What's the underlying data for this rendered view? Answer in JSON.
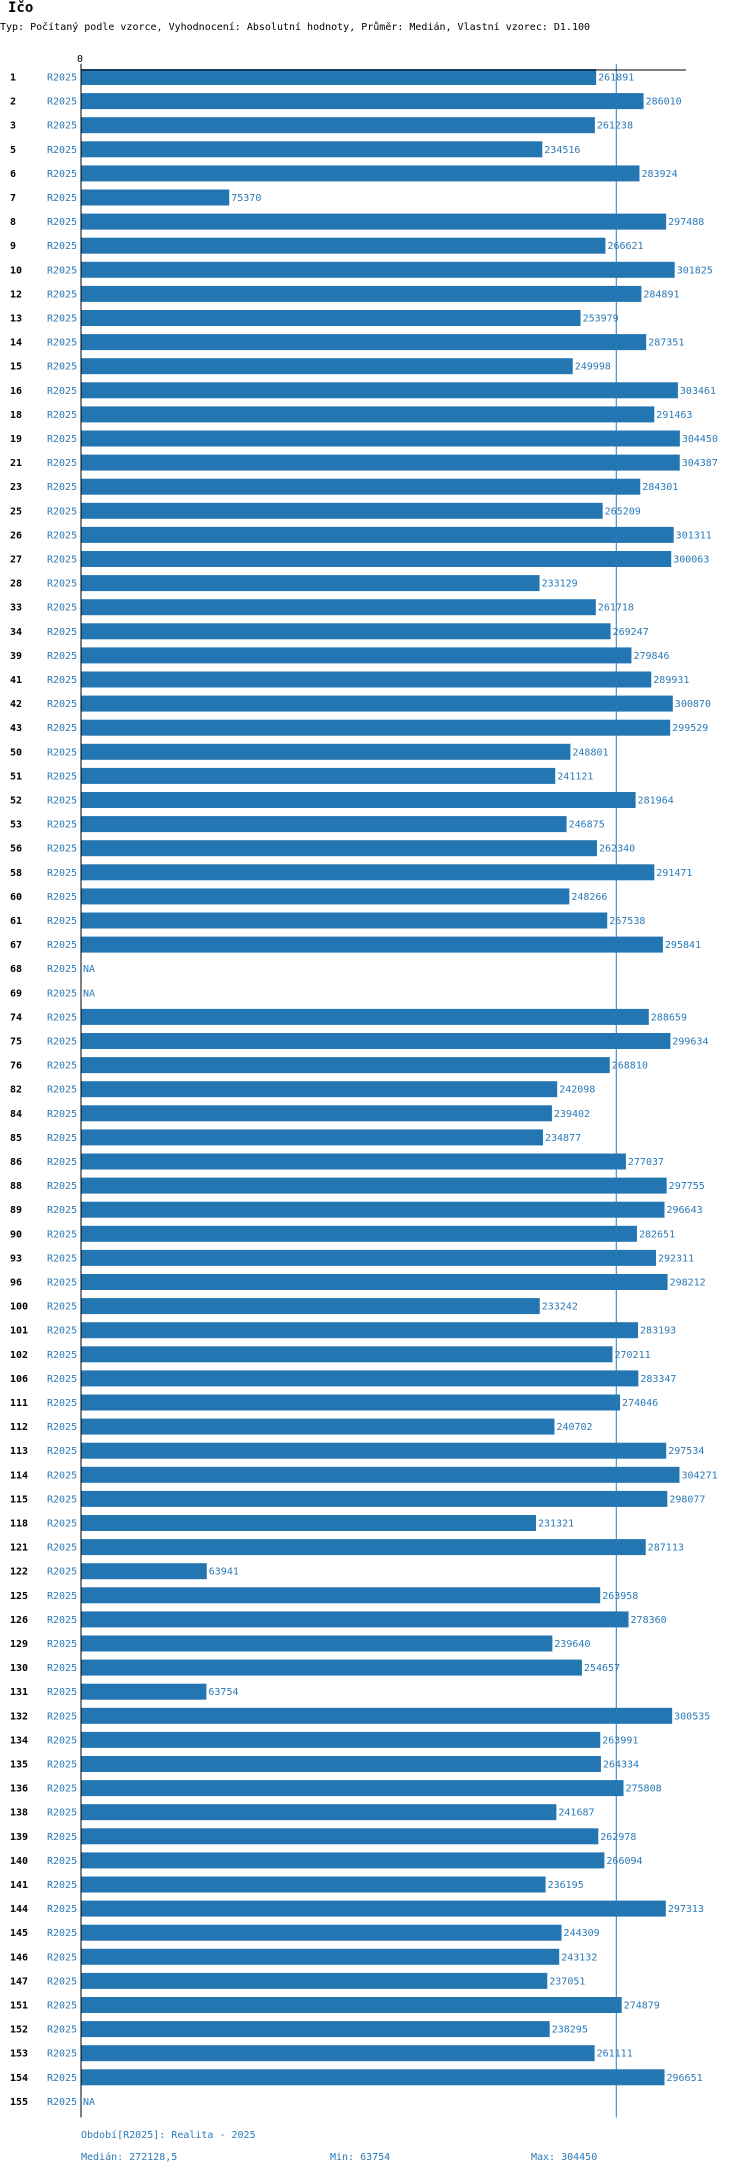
{
  "title": "Ičo",
  "subtitle": "Typ: Počítaný podle vzorce, Vyhodnocení: Absolutní hodnoty, Průměr: Medián, Vlastní vzorec: D1.100",
  "colors": {
    "bar": "#2476b2",
    "text_accent": "#2a7ab8",
    "median_line": "#2a7ab8",
    "axis": "#000000"
  },
  "chart_data": {
    "type": "bar",
    "orientation": "horizontal",
    "title": "Ičo",
    "period_label": "R2025",
    "x_tick_label": "0",
    "xlim": [
      0,
      320000
    ],
    "median": 272128.5,
    "na_label": "NA",
    "rows": [
      {
        "id": "1",
        "value": 261891
      },
      {
        "id": "2",
        "value": 286010
      },
      {
        "id": "3",
        "value": 261238
      },
      {
        "id": "5",
        "value": 234516
      },
      {
        "id": "6",
        "value": 283924
      },
      {
        "id": "7",
        "value": 75370
      },
      {
        "id": "8",
        "value": 297488
      },
      {
        "id": "9",
        "value": 266621
      },
      {
        "id": "10",
        "value": 301825
      },
      {
        "id": "12",
        "value": 284891
      },
      {
        "id": "13",
        "value": 253979
      },
      {
        "id": "14",
        "value": 287351
      },
      {
        "id": "15",
        "value": 249998
      },
      {
        "id": "16",
        "value": 303461
      },
      {
        "id": "18",
        "value": 291463
      },
      {
        "id": "19",
        "value": 304450
      },
      {
        "id": "21",
        "value": 304387
      },
      {
        "id": "23",
        "value": 284301
      },
      {
        "id": "25",
        "value": 265209
      },
      {
        "id": "26",
        "value": 301311
      },
      {
        "id": "27",
        "value": 300063
      },
      {
        "id": "28",
        "value": 233129
      },
      {
        "id": "33",
        "value": 261718
      },
      {
        "id": "34",
        "value": 269247
      },
      {
        "id": "39",
        "value": 279846
      },
      {
        "id": "41",
        "value": 289931
      },
      {
        "id": "42",
        "value": 300870
      },
      {
        "id": "43",
        "value": 299529
      },
      {
        "id": "50",
        "value": 248801
      },
      {
        "id": "51",
        "value": 241121
      },
      {
        "id": "52",
        "value": 281964
      },
      {
        "id": "53",
        "value": 246875
      },
      {
        "id": "56",
        "value": 262340
      },
      {
        "id": "58",
        "value": 291471
      },
      {
        "id": "60",
        "value": 248266
      },
      {
        "id": "61",
        "value": 267538
      },
      {
        "id": "67",
        "value": 295841
      },
      {
        "id": "68",
        "value": null
      },
      {
        "id": "69",
        "value": null
      },
      {
        "id": "74",
        "value": 288659
      },
      {
        "id": "75",
        "value": 299634
      },
      {
        "id": "76",
        "value": 268810
      },
      {
        "id": "82",
        "value": 242098
      },
      {
        "id": "84",
        "value": 239402
      },
      {
        "id": "85",
        "value": 234877
      },
      {
        "id": "86",
        "value": 277037
      },
      {
        "id": "88",
        "value": 297755
      },
      {
        "id": "89",
        "value": 296643
      },
      {
        "id": "90",
        "value": 282651
      },
      {
        "id": "93",
        "value": 292311
      },
      {
        "id": "96",
        "value": 298212
      },
      {
        "id": "100",
        "value": 233242
      },
      {
        "id": "101",
        "value": 283193
      },
      {
        "id": "102",
        "value": 270211
      },
      {
        "id": "106",
        "value": 283347
      },
      {
        "id": "111",
        "value": 274046
      },
      {
        "id": "112",
        "value": 240702
      },
      {
        "id": "113",
        "value": 297534
      },
      {
        "id": "114",
        "value": 304271
      },
      {
        "id": "115",
        "value": 298077
      },
      {
        "id": "118",
        "value": 231321
      },
      {
        "id": "121",
        "value": 287113
      },
      {
        "id": "122",
        "value": 63941
      },
      {
        "id": "125",
        "value": 263958
      },
      {
        "id": "126",
        "value": 278360
      },
      {
        "id": "129",
        "value": 239640
      },
      {
        "id": "130",
        "value": 254657
      },
      {
        "id": "131",
        "value": 63754
      },
      {
        "id": "132",
        "value": 300535
      },
      {
        "id": "134",
        "value": 263991
      },
      {
        "id": "135",
        "value": 264334
      },
      {
        "id": "136",
        "value": 275808
      },
      {
        "id": "138",
        "value": 241687
      },
      {
        "id": "139",
        "value": 262978
      },
      {
        "id": "140",
        "value": 266094
      },
      {
        "id": "141",
        "value": 236195
      },
      {
        "id": "144",
        "value": 297313
      },
      {
        "id": "145",
        "value": 244309
      },
      {
        "id": "146",
        "value": 243132
      },
      {
        "id": "147",
        "value": 237051
      },
      {
        "id": "151",
        "value": 274879
      },
      {
        "id": "152",
        "value": 238295
      },
      {
        "id": "153",
        "value": 261111
      },
      {
        "id": "154",
        "value": 296651
      },
      {
        "id": "155",
        "value": null
      }
    ]
  },
  "footer": {
    "period": "Období[R2025]: Realita - 2025",
    "median": "Medián: 272128,5",
    "min": "Min: 63754",
    "max": "Max: 304450"
  }
}
